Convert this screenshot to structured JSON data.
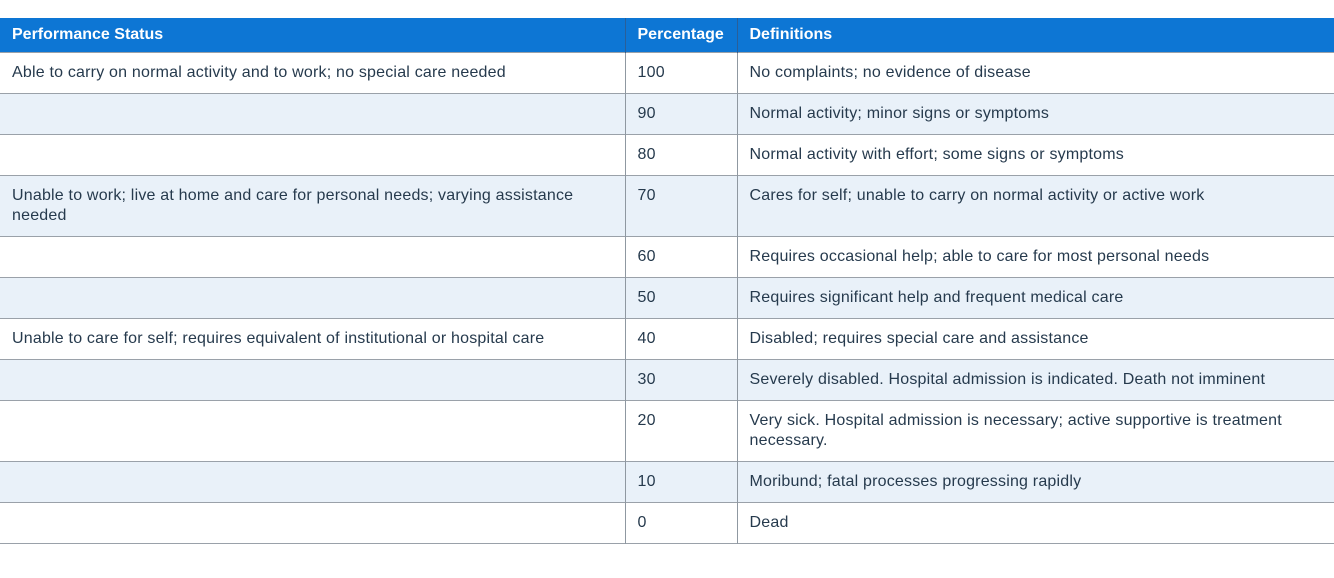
{
  "table": {
    "columns": [
      {
        "label": "Performance Status"
      },
      {
        "label": "Percentage"
      },
      {
        "label": "Definitions"
      }
    ],
    "rows": [
      {
        "performance": "Able to carry on normal activity and to work; no special care needed",
        "percentage": "100",
        "definition": "No complaints; no evidence of disease"
      },
      {
        "performance": "",
        "percentage": "90",
        "definition": "Normal activity; minor signs or symptoms"
      },
      {
        "performance": "",
        "percentage": "80",
        "definition": "Normal activity with effort; some signs or symptoms"
      },
      {
        "performance": "Unable to work; live at home and care for personal needs; varying assistance needed",
        "percentage": "70",
        "definition": "Cares for self; unable to carry on normal activity or active work"
      },
      {
        "performance": "",
        "percentage": "60",
        "definition": "Requires occasional help; able to care for most personal needs"
      },
      {
        "performance": "",
        "percentage": "50",
        "definition": "Requires significant help and frequent medical care"
      },
      {
        "performance": "Unable to care for self; requires equivalent of institutional or hospital care",
        "percentage": "40",
        "definition": "Disabled; requires special care and assistance"
      },
      {
        "performance": "",
        "percentage": "30",
        "definition": "Severely disabled. Hospital admission is indicated. Death not imminent"
      },
      {
        "performance": "",
        "percentage": "20",
        "definition": "Very sick. Hospital admission is necessary; active supportive is treatment necessary."
      },
      {
        "performance": "",
        "percentage": "10",
        "definition": "Moribund; fatal processes progressing rapidly"
      },
      {
        "performance": "",
        "percentage": "0",
        "definition": "Dead"
      }
    ]
  },
  "colors": {
    "header_background": "#0d76d4",
    "header_text": "#ffffff",
    "row_background": "#ffffff",
    "row_alt_background": "#e9f1f9",
    "border": "#9aa1a9",
    "body_text": "#263a4d"
  }
}
